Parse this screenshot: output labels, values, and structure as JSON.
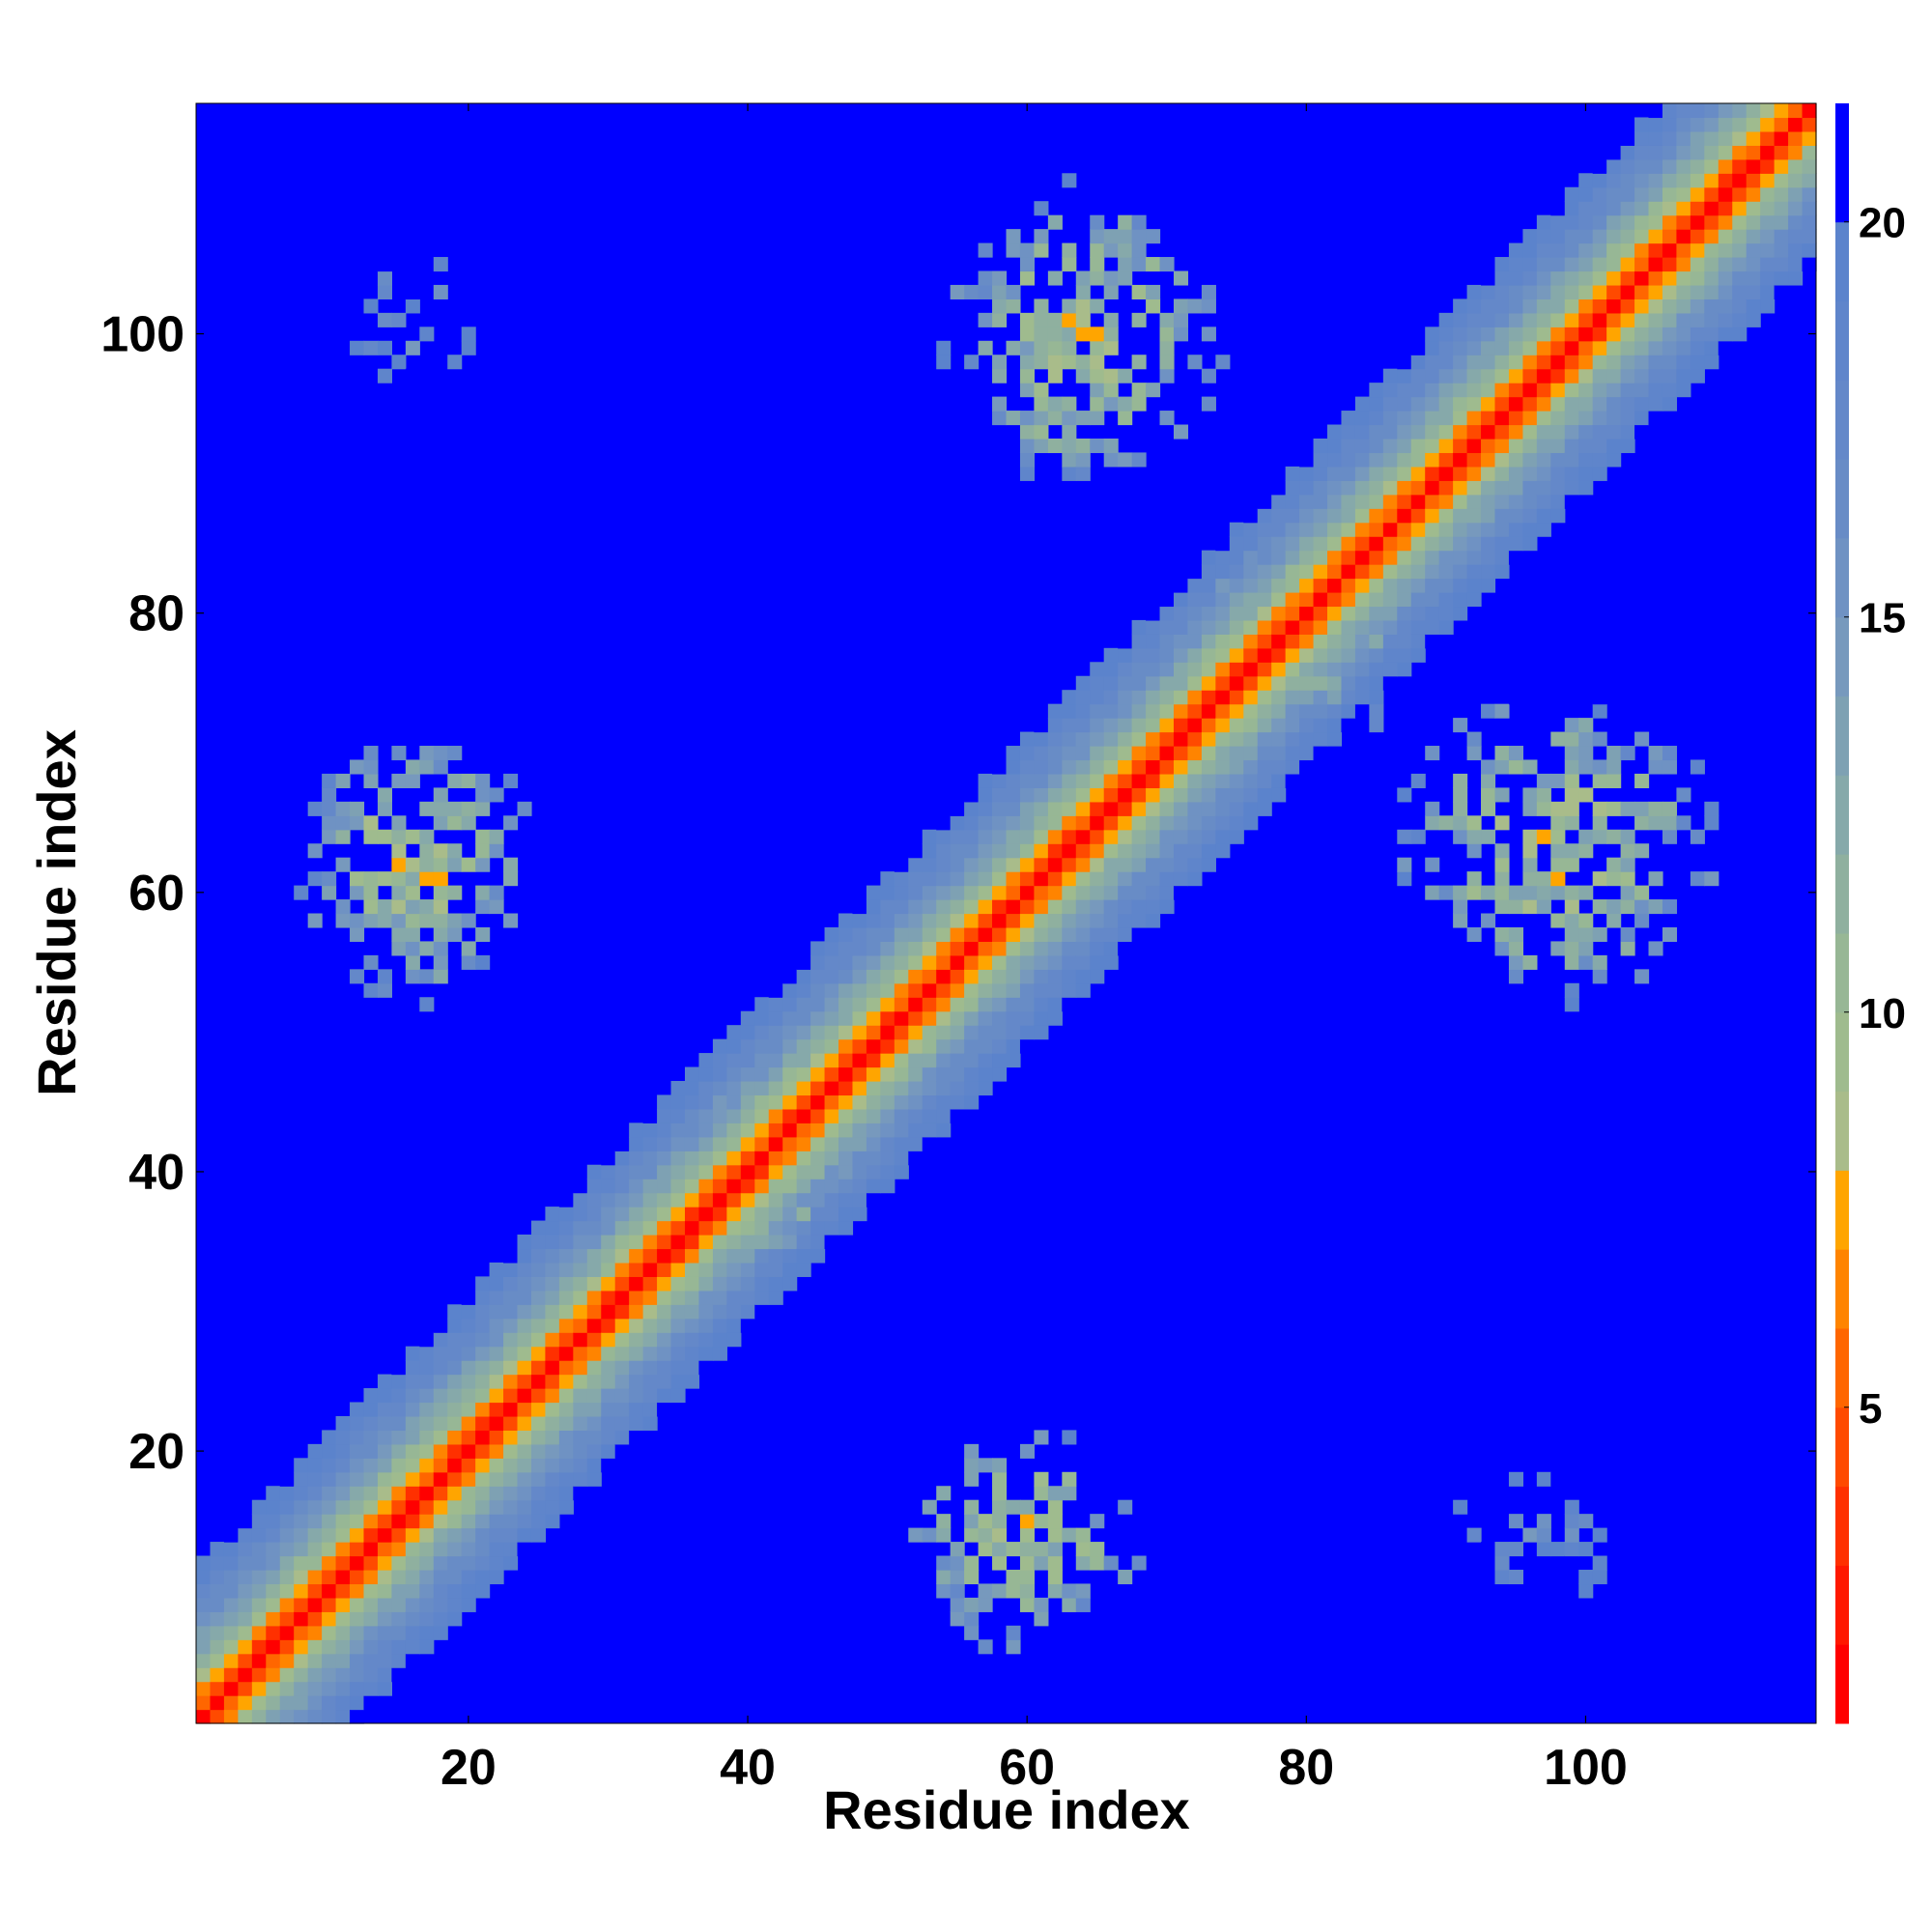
{
  "chart_data": {
    "type": "heatmap",
    "title": "",
    "xlabel": "Residue index",
    "ylabel": "Residue index",
    "n_residues": 116,
    "xlim": [
      1,
      116
    ],
    "ylim": [
      1,
      116
    ],
    "x_ticks": [
      20,
      40,
      60,
      80,
      100
    ],
    "y_ticks": [
      20,
      40,
      60,
      80,
      100
    ],
    "x_tick_labels": [
      "20",
      "40",
      "60",
      "80",
      "100"
    ],
    "y_tick_labels": [
      "20",
      "40",
      "60",
      "80",
      "100"
    ],
    "colorbar": {
      "range": [
        1,
        21.5
      ],
      "ticks": [
        5,
        10,
        15,
        20
      ],
      "tick_labels": [
        "5",
        "10",
        "15",
        "20"
      ],
      "colors": [
        {
          "max": 2,
          "color": "#ff0000"
        },
        {
          "max": 3,
          "color": "#ff1800"
        },
        {
          "max": 4,
          "color": "#ff3000"
        },
        {
          "max": 5,
          "color": "#ff4a00"
        },
        {
          "max": 6,
          "color": "#ff6600"
        },
        {
          "max": 7,
          "color": "#ff8400"
        },
        {
          "max": 8,
          "color": "#ffa500"
        },
        {
          "max": 9,
          "color": "#a9bc8a"
        },
        {
          "max": 10,
          "color": "#9fbb8e"
        },
        {
          "max": 11,
          "color": "#97b795"
        },
        {
          "max": 12,
          "color": "#8fb09f"
        },
        {
          "max": 13,
          "color": "#86a9aa"
        },
        {
          "max": 14,
          "color": "#7ea1b3"
        },
        {
          "max": 15,
          "color": "#7799bd"
        },
        {
          "max": 16,
          "color": "#6f92c3"
        },
        {
          "max": 17,
          "color": "#688cc6"
        },
        {
          "max": 18,
          "color": "#6488c9"
        },
        {
          "max": 19,
          "color": "#5f85cb"
        },
        {
          "max": 20,
          "color": "#5b83cc"
        },
        {
          "max": 21.5,
          "color": "#0000ff"
        }
      ]
    },
    "background_value": 21.5,
    "background_color": "#0000ff",
    "diagonal_band": {
      "core_value": 1,
      "description_values_by_offset": [
        1,
        4.5,
        7,
        9.5,
        11.5,
        13,
        14.5,
        16,
        17,
        18,
        19,
        19.8
      ]
    },
    "contact_clusters": [
      {
        "center": [
          60,
          14
        ],
        "spread": [
          6,
          6
        ],
        "min_value": 7,
        "density": 0.6
      },
      {
        "center": [
          97,
          14
        ],
        "spread": [
          6,
          4
        ],
        "min_value": 14,
        "density": 0.4
      },
      {
        "center": [
          16,
          62
        ],
        "spread": [
          6,
          7
        ],
        "min_value": 7,
        "density": 0.6
      },
      {
        "center": [
          16,
          101
        ],
        "spread": [
          4,
          5
        ],
        "min_value": 14,
        "density": 0.4
      },
      {
        "center": [
          64,
          100
        ],
        "spread": [
          7,
          8
        ],
        "min_value": 7,
        "density": 0.6
      },
      {
        "center": [
          98,
          63
        ],
        "spread": [
          8,
          8
        ],
        "min_value": 7,
        "density": 0.6
      },
      {
        "center": [
          41,
          40
        ],
        "spread": [
          5,
          5
        ],
        "min_value": 8,
        "density": 0.5
      },
      {
        "center": [
          80,
          79
        ],
        "spread": [
          6,
          6
        ],
        "min_value": 9,
        "density": 0.5
      }
    ]
  }
}
